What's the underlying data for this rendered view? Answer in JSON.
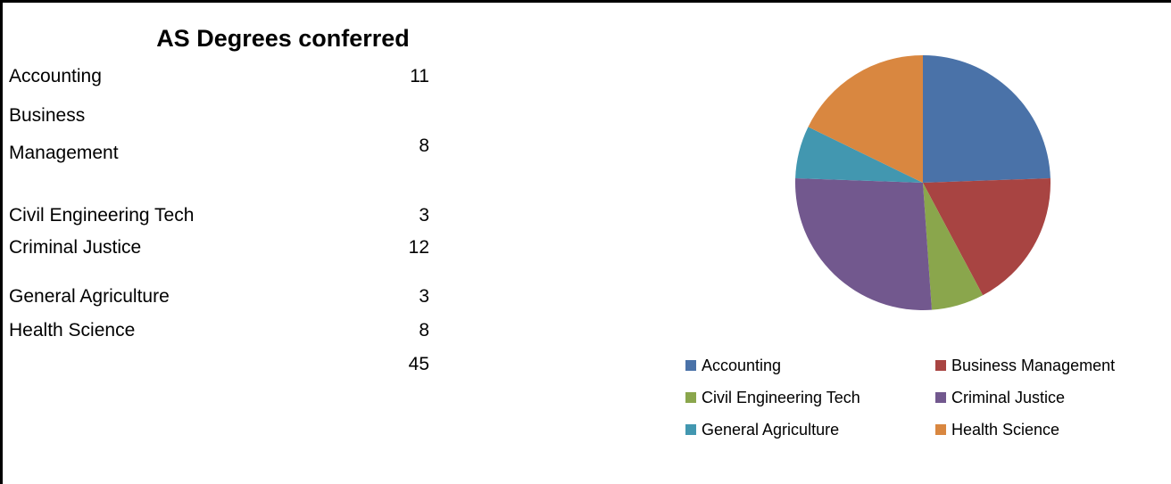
{
  "table": {
    "title": "AS Degrees conferred",
    "rows": [
      [
        "Accounting",
        11
      ],
      [
        "Business Management",
        8
      ],
      [
        "Civil Engineering Tech",
        3
      ],
      [
        "Criminal Justice",
        12
      ],
      [
        "General Agriculture",
        3
      ],
      [
        "Health Science",
        8
      ]
    ],
    "total": 45
  },
  "chart_data": {
    "type": "pie",
    "categories": [
      "Accounting",
      "Business Management",
      "Civil Engineering Tech",
      "Criminal Justice",
      "General Agriculture",
      "Health Science"
    ],
    "values": [
      11,
      8,
      3,
      12,
      3,
      8
    ],
    "colors": [
      "#4a72a8",
      "#a84442",
      "#8aa64c",
      "#72588e",
      "#4297b0",
      "#d98740"
    ],
    "legend": "bottom"
  }
}
